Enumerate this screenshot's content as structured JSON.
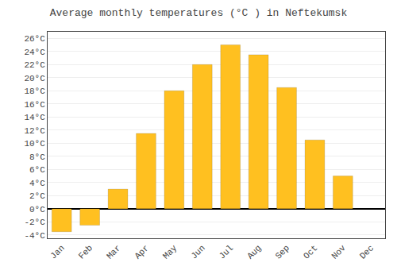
{
  "chart_data": {
    "type": "bar",
    "title": "Average monthly temperatures (°C ) in Neftekumsk",
    "categories": [
      "Jan",
      "Feb",
      "Mar",
      "Apr",
      "May",
      "Jun",
      "Jul",
      "Aug",
      "Sep",
      "Oct",
      "Nov",
      "Dec"
    ],
    "values": [
      -3.5,
      -2.5,
      3.0,
      11.5,
      18.0,
      22.0,
      25.0,
      23.5,
      18.5,
      10.5,
      5.0,
      0.0
    ],
    "color": "#FFC020",
    "ylim": [
      -4.5,
      27
    ],
    "yticks": [
      {
        "value": -4,
        "label": "-4°C"
      },
      {
        "value": -2,
        "label": "-2°C"
      },
      {
        "value": 0,
        "label": "0°C"
      },
      {
        "value": 2,
        "label": "2°C"
      },
      {
        "value": 4,
        "label": "4°C"
      },
      {
        "value": 6,
        "label": "6°C"
      },
      {
        "value": 8,
        "label": "8°C"
      },
      {
        "value": 10,
        "label": "10°C"
      },
      {
        "value": 12,
        "label": "12°C"
      },
      {
        "value": 14,
        "label": "14°C"
      },
      {
        "value": 16,
        "label": "16°C"
      },
      {
        "value": 18,
        "label": "18°C"
      },
      {
        "value": 20,
        "label": "20°C"
      },
      {
        "value": 22,
        "label": "22°C"
      },
      {
        "value": 24,
        "label": "24°C"
      },
      {
        "value": 26,
        "label": "26°C"
      }
    ],
    "grid": true
  }
}
